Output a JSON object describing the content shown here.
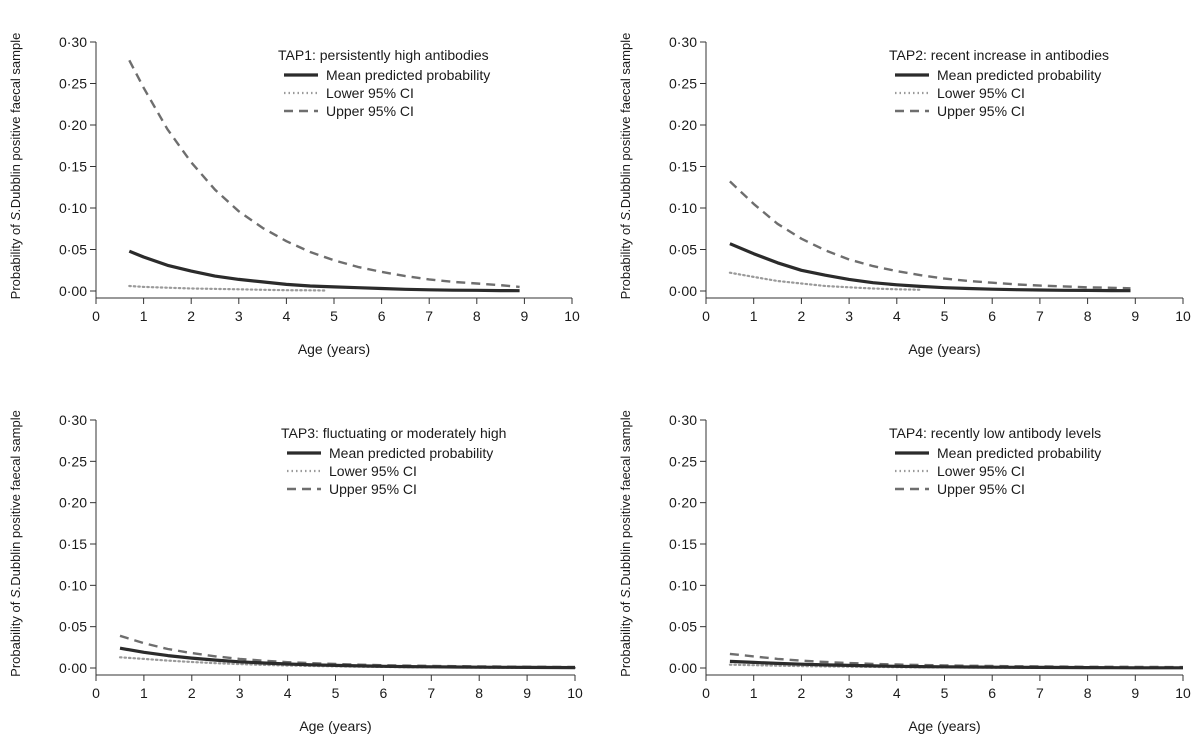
{
  "colors": {
    "axis": "#333333",
    "mean": "#2b2b2b",
    "lower": "#9a9a9a",
    "upper": "#6e6e6e"
  },
  "chart_data": [
    {
      "type": "line",
      "title": "TAP1: persistently high antibodies",
      "xlabel": "Age (years)",
      "ylabel_prefix": "Probability of ",
      "ylabel_italic": "S.",
      "ylabel_suffix": "Dubblin positive faecal sample",
      "xlim": [
        0,
        10
      ],
      "ylim": [
        0,
        0.3
      ],
      "x_ticks": [
        "0",
        "1",
        "2",
        "3",
        "4",
        "5",
        "6",
        "7",
        "8",
        "9",
        "10"
      ],
      "y_ticks": [
        "0·00",
        "0·05",
        "0·10",
        "0·15",
        "0·20",
        "0·25",
        "0·30"
      ],
      "legend_position": "top-right",
      "series": [
        {
          "name": "Mean predicted probability",
          "style": "solid",
          "x": [
            0.7,
            1,
            1.5,
            2,
            2.5,
            3,
            3.5,
            4,
            4.5,
            5,
            5.5,
            6,
            6.5,
            7,
            7.5,
            8,
            8.5,
            8.9
          ],
          "values": [
            0.048,
            0.041,
            0.031,
            0.024,
            0.018,
            0.014,
            0.011,
            0.008,
            0.006,
            0.005,
            0.004,
            0.003,
            0.002,
            0.0015,
            0.001,
            0.0008,
            0.0005,
            0.0004
          ]
        },
        {
          "name": "Lower 95% CI",
          "style": "dotted",
          "x": [
            0.7,
            1,
            1.5,
            2,
            2.5,
            3,
            3.5,
            4,
            4.5,
            4.8
          ],
          "values": [
            0.006,
            0.005,
            0.004,
            0.003,
            0.0025,
            0.002,
            0.0015,
            0.001,
            0.0008,
            0.0006
          ]
        },
        {
          "name": "Upper 95% CI",
          "style": "dashed",
          "x": [
            0.7,
            1,
            1.5,
            2,
            2.5,
            3,
            3.5,
            4,
            4.5,
            5,
            5.5,
            6,
            6.5,
            7,
            7.5,
            8,
            8.5,
            8.9
          ],
          "values": [
            0.278,
            0.245,
            0.195,
            0.155,
            0.122,
            0.096,
            0.076,
            0.06,
            0.047,
            0.037,
            0.029,
            0.023,
            0.018,
            0.014,
            0.011,
            0.009,
            0.007,
            0.005
          ]
        }
      ]
    },
    {
      "type": "line",
      "title": "TAP2: recent increase in antibodies",
      "xlabel": "Age (years)",
      "ylabel_prefix": "Probability of ",
      "ylabel_italic": "S.",
      "ylabel_suffix": "Dubblin positive faecal sample",
      "xlim": [
        0,
        10
      ],
      "ylim": [
        0,
        0.3
      ],
      "x_ticks": [
        "0",
        "1",
        "2",
        "3",
        "4",
        "5",
        "6",
        "7",
        "8",
        "9",
        "10"
      ],
      "y_ticks": [
        "0·00",
        "0·05",
        "0·10",
        "0·15",
        "0·20",
        "0·25",
        "0·30"
      ],
      "legend_position": "top-right",
      "series": [
        {
          "name": "Mean predicted probability",
          "style": "solid",
          "x": [
            0.5,
            1,
            1.5,
            2,
            2.5,
            3,
            3.5,
            4,
            4.5,
            5,
            5.5,
            6,
            6.5,
            7,
            7.5,
            8,
            8.5,
            8.9
          ],
          "values": [
            0.057,
            0.045,
            0.034,
            0.025,
            0.019,
            0.014,
            0.01,
            0.0075,
            0.0055,
            0.004,
            0.003,
            0.0022,
            0.0016,
            0.0012,
            0.0009,
            0.0007,
            0.0005,
            0.0004
          ]
        },
        {
          "name": "Lower 95% CI",
          "style": "dotted",
          "x": [
            0.5,
            1,
            1.5,
            2,
            2.5,
            3,
            3.5,
            4,
            4.5
          ],
          "values": [
            0.022,
            0.017,
            0.012,
            0.009,
            0.006,
            0.0045,
            0.003,
            0.002,
            0.0015
          ]
        },
        {
          "name": "Upper 95% CI",
          "style": "dashed",
          "x": [
            0.5,
            1,
            1.5,
            2,
            2.5,
            3,
            3.5,
            4,
            4.5,
            5,
            5.5,
            6,
            6.5,
            7,
            7.5,
            8,
            8.5,
            8.9
          ],
          "values": [
            0.132,
            0.105,
            0.081,
            0.063,
            0.049,
            0.038,
            0.03,
            0.024,
            0.019,
            0.015,
            0.012,
            0.01,
            0.008,
            0.0065,
            0.0055,
            0.0045,
            0.0038,
            0.0032
          ]
        }
      ]
    },
    {
      "type": "line",
      "title": "TAP3: fluctuating or moderately high",
      "xlabel": "Age (years)",
      "ylabel_prefix": "Probability of ",
      "ylabel_italic": "S.",
      "ylabel_suffix": "Dubblin positive faecal sample",
      "xlim": [
        0,
        10
      ],
      "ylim": [
        0,
        0.3
      ],
      "x_ticks": [
        "0",
        "1",
        "2",
        "3",
        "4",
        "5",
        "6",
        "7",
        "8",
        "9",
        "10"
      ],
      "y_ticks": [
        "0·00",
        "0·05",
        "0·10",
        "0·15",
        "0·20",
        "0·25",
        "0·30"
      ],
      "legend_position": "top-right",
      "series": [
        {
          "name": "Mean predicted probability",
          "style": "solid",
          "x": [
            0.5,
            1,
            1.5,
            2,
            2.5,
            3,
            3.5,
            4,
            4.5,
            5,
            5.5,
            6,
            6.5,
            7,
            7.5,
            8,
            8.5,
            9,
            9.5,
            10
          ],
          "values": [
            0.024,
            0.019,
            0.015,
            0.012,
            0.0095,
            0.0075,
            0.006,
            0.0048,
            0.0039,
            0.0032,
            0.0026,
            0.0021,
            0.0017,
            0.0014,
            0.0012,
            0.001,
            0.0008,
            0.0007,
            0.0006,
            0.0005
          ]
        },
        {
          "name": "Lower 95% CI",
          "style": "dotted",
          "x": [
            0.5,
            1,
            1.5,
            2,
            2.5,
            3,
            3.5,
            4,
            4.5,
            5,
            5.5,
            6,
            6.5,
            7,
            7.5,
            8,
            8.5,
            9,
            9.5,
            10
          ],
          "values": [
            0.013,
            0.011,
            0.009,
            0.0072,
            0.0058,
            0.0047,
            0.0038,
            0.003,
            0.0024,
            0.002,
            0.0016,
            0.0013,
            0.001,
            0.0008,
            0.0007,
            0.0005,
            0.0004,
            0.0003,
            0.0003,
            0.0002
          ]
        },
        {
          "name": "Upper 95% CI",
          "style": "dashed",
          "x": [
            0.5,
            1,
            1.5,
            2,
            2.5,
            3,
            3.5,
            4,
            4.5,
            5,
            5.5,
            6,
            6.5,
            7,
            7.5,
            8,
            8.5,
            9,
            9.5,
            10
          ],
          "values": [
            0.039,
            0.03,
            0.023,
            0.018,
            0.014,
            0.011,
            0.0088,
            0.007,
            0.0058,
            0.0048,
            0.004,
            0.0034,
            0.0029,
            0.0025,
            0.0022,
            0.0019,
            0.0017,
            0.0015,
            0.0013,
            0.0012
          ]
        }
      ]
    },
    {
      "type": "line",
      "title": "TAP4: recently low antibody levels",
      "xlabel": "Age (years)",
      "ylabel_prefix": "Probability of ",
      "ylabel_italic": "S.",
      "ylabel_suffix": "Dubblin positive faecal sample",
      "xlim": [
        0,
        10
      ],
      "ylim": [
        0,
        0.3
      ],
      "x_ticks": [
        "0",
        "1",
        "2",
        "3",
        "4",
        "5",
        "6",
        "7",
        "8",
        "9",
        "10"
      ],
      "y_ticks": [
        "0·00",
        "0·05",
        "0·10",
        "0·15",
        "0·20",
        "0·25",
        "0·30"
      ],
      "legend_position": "top-right",
      "series": [
        {
          "name": "Mean predicted probability",
          "style": "solid",
          "x": [
            0.5,
            1,
            1.5,
            2,
            2.5,
            3,
            3.5,
            4,
            4.5,
            5,
            5.5,
            6,
            6.5,
            7,
            7.5,
            8,
            8.5,
            9,
            9.5,
            10
          ],
          "values": [
            0.008,
            0.0068,
            0.0056,
            0.0046,
            0.0038,
            0.0031,
            0.0026,
            0.0021,
            0.0017,
            0.0014,
            0.0012,
            0.001,
            0.0008,
            0.0007,
            0.0006,
            0.0005,
            0.0004,
            0.0003,
            0.0003,
            0.0002
          ]
        },
        {
          "name": "Lower 95% CI",
          "style": "dotted",
          "x": [
            0.5,
            1,
            1.5,
            2,
            2.5,
            3,
            3.5,
            4,
            4.5,
            5,
            5.5,
            6,
            6.5,
            7,
            7.5,
            8,
            8.5,
            9,
            9.5,
            10
          ],
          "values": [
            0.004,
            0.0034,
            0.0028,
            0.0023,
            0.0019,
            0.0016,
            0.0013,
            0.001,
            0.0008,
            0.0007,
            0.0006,
            0.0005,
            0.0004,
            0.0003,
            0.0003,
            0.0002,
            0.0002,
            0.0001,
            0.0001,
            0.0001
          ]
        },
        {
          "name": "Upper 95% CI",
          "style": "dashed",
          "x": [
            0.5,
            1,
            1.5,
            2,
            2.5,
            3,
            3.5,
            4,
            4.5,
            5,
            5.5,
            6,
            6.5,
            7,
            7.5,
            8,
            8.5,
            9,
            9.5,
            10
          ],
          "values": [
            0.017,
            0.014,
            0.011,
            0.009,
            0.0073,
            0.006,
            0.005,
            0.0042,
            0.0036,
            0.0031,
            0.0027,
            0.0024,
            0.0021,
            0.0019,
            0.0017,
            0.0015,
            0.0014,
            0.0013,
            0.0012,
            0.0011
          ]
        }
      ]
    }
  ]
}
